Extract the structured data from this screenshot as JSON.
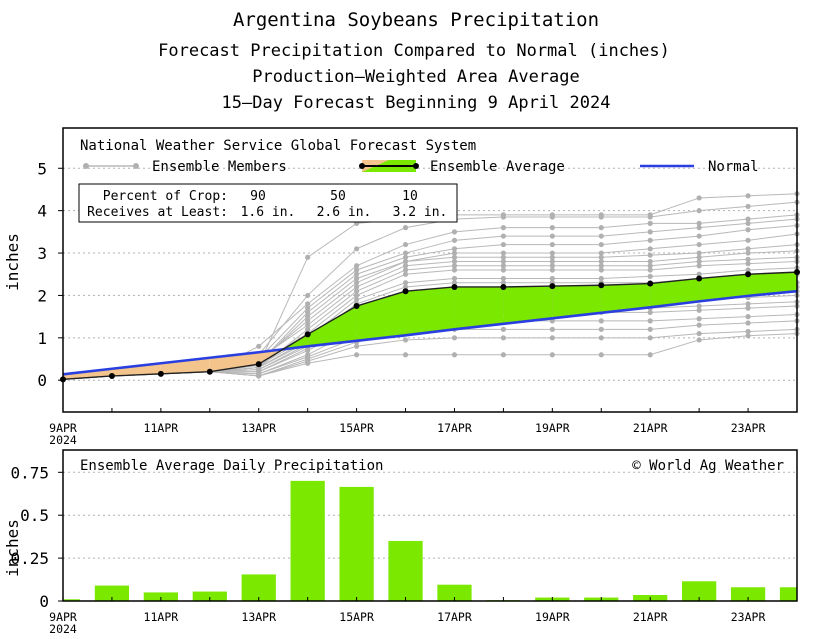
{
  "titles": {
    "line1": "Argentina Soybeans Precipitation",
    "line2": "Forecast Precipitation Compared to Normal (inches)",
    "line3": "Production—Weighted Area Average",
    "line4": "15—Day Forecast Beginning 9 April 2024"
  },
  "top_legend": {
    "model": "National Weather Service Global Forecast System",
    "members": "Ensemble Members",
    "average": "Ensemble Average",
    "normal": "Normal"
  },
  "crop_box": {
    "row1_label": "Percent of Crop:",
    "row1_values": [
      "90",
      "50",
      "10"
    ],
    "row2_label": "Receives at Least:",
    "row2_values": [
      "1.6 in.",
      "2.6 in.",
      "3.2 in."
    ]
  },
  "bottom_legend": {
    "title": "Ensemble Average Daily Precipitation",
    "copyright": "© World Ag Weather"
  },
  "colors": {
    "normal": "#2a3fe0",
    "above_fill": "#7be800",
    "below_fill": "#f3c48c",
    "members": "#b8b8b8",
    "bars": "#7be800"
  },
  "chart_data": [
    {
      "type": "line",
      "title": "Forecast Precipitation Compared to Normal (inches)",
      "ylabel": "inches",
      "xlabel": "",
      "ylim": [
        -0.75,
        5.95
      ],
      "yticks": [
        "0",
        "1",
        "2",
        "3",
        "4",
        "5"
      ],
      "xtick_labels": [
        "9APR",
        "11APR",
        "13APR",
        "15APR",
        "17APR",
        "19APR",
        "21APR",
        "23APR"
      ],
      "x_year_label": "2024",
      "days": [
        0,
        1,
        2,
        3,
        4,
        5,
        6,
        7,
        8,
        9,
        10,
        11,
        12,
        13,
        14,
        15
      ],
      "series": [
        {
          "name": "Ensemble Average",
          "values": [
            0.02,
            0.1,
            0.15,
            0.2,
            0.38,
            1.08,
            1.75,
            2.1,
            2.2,
            2.2,
            2.22,
            2.24,
            2.28,
            2.4,
            2.5,
            2.55
          ]
        },
        {
          "name": "Normal",
          "values": [
            0.14,
            0.27,
            0.4,
            0.53,
            0.66,
            0.8,
            0.93,
            1.06,
            1.2,
            1.33,
            1.46,
            1.59,
            1.72,
            1.86,
            1.99,
            2.1
          ]
        }
      ],
      "ensemble_members": [
        [
          0.02,
          0.1,
          0.15,
          0.2,
          0.35,
          2.9,
          3.7,
          3.8,
          3.9,
          3.9,
          3.9,
          3.9,
          3.9,
          4.3,
          4.35,
          4.4
        ],
        [
          0.02,
          0.1,
          0.15,
          0.2,
          0.6,
          2.0,
          3.1,
          3.6,
          3.8,
          3.85,
          3.85,
          3.85,
          3.85,
          4.0,
          4.1,
          4.2
        ],
        [
          0.02,
          0.1,
          0.15,
          0.2,
          0.8,
          1.8,
          2.7,
          3.2,
          3.5,
          3.6,
          3.6,
          3.6,
          3.7,
          3.7,
          3.8,
          3.9
        ],
        [
          0.02,
          0.1,
          0.15,
          0.2,
          0.5,
          1.7,
          2.6,
          3.0,
          3.3,
          3.4,
          3.4,
          3.4,
          3.5,
          3.6,
          3.7,
          3.8
        ],
        [
          0.02,
          0.1,
          0.15,
          0.2,
          0.4,
          1.6,
          2.5,
          2.9,
          3.1,
          3.2,
          3.2,
          3.2,
          3.3,
          3.4,
          3.55,
          3.65
        ],
        [
          0.02,
          0.1,
          0.15,
          0.2,
          0.4,
          1.5,
          2.4,
          2.8,
          3.0,
          3.0,
          3.0,
          3.0,
          3.1,
          3.2,
          3.3,
          3.45
        ],
        [
          0.02,
          0.1,
          0.15,
          0.2,
          0.45,
          1.4,
          2.3,
          2.8,
          2.9,
          2.9,
          2.9,
          2.9,
          2.95,
          3.0,
          3.1,
          3.2
        ],
        [
          0.02,
          0.1,
          0.15,
          0.2,
          0.5,
          1.3,
          2.2,
          2.7,
          2.8,
          2.8,
          2.8,
          2.8,
          2.8,
          2.9,
          3.0,
          3.05
        ],
        [
          0.02,
          0.1,
          0.15,
          0.2,
          0.3,
          1.2,
          2.1,
          2.6,
          2.7,
          2.7,
          2.7,
          2.7,
          2.7,
          2.8,
          2.85,
          2.9
        ],
        [
          0.02,
          0.1,
          0.15,
          0.2,
          0.4,
          1.1,
          2.0,
          2.5,
          2.6,
          2.6,
          2.6,
          2.6,
          2.6,
          2.7,
          2.75,
          2.8
        ],
        [
          0.02,
          0.1,
          0.15,
          0.2,
          0.35,
          1.0,
          1.9,
          2.3,
          2.4,
          2.4,
          2.4,
          2.4,
          2.45,
          2.5,
          2.6,
          2.65
        ],
        [
          0.02,
          0.1,
          0.15,
          0.2,
          0.3,
          0.95,
          1.8,
          2.2,
          2.3,
          2.3,
          2.3,
          2.3,
          2.3,
          2.4,
          2.45,
          2.5
        ],
        [
          0.02,
          0.1,
          0.15,
          0.2,
          0.3,
          0.9,
          1.7,
          2.0,
          2.1,
          2.1,
          2.1,
          2.1,
          2.15,
          2.2,
          2.25,
          2.3
        ],
        [
          0.02,
          0.1,
          0.15,
          0.2,
          0.25,
          0.85,
          1.6,
          1.9,
          2.0,
          2.0,
          2.0,
          2.0,
          2.0,
          2.1,
          2.15,
          2.2
        ],
        [
          0.02,
          0.1,
          0.15,
          0.2,
          0.25,
          0.8,
          1.5,
          1.8,
          1.9,
          1.9,
          1.9,
          1.9,
          1.9,
          2.0,
          2.05,
          2.1
        ],
        [
          0.02,
          0.1,
          0.15,
          0.2,
          0.2,
          0.75,
          1.4,
          1.7,
          1.8,
          1.8,
          1.8,
          1.8,
          1.8,
          1.9,
          1.95,
          2.0
        ],
        [
          0.02,
          0.1,
          0.15,
          0.2,
          0.2,
          0.7,
          1.3,
          1.6,
          1.7,
          1.7,
          1.7,
          1.7,
          1.7,
          1.75,
          1.8,
          1.85
        ],
        [
          0.02,
          0.1,
          0.15,
          0.2,
          0.15,
          0.6,
          1.2,
          1.5,
          1.6,
          1.6,
          1.6,
          1.6,
          1.6,
          1.65,
          1.7,
          1.75
        ],
        [
          0.02,
          0.1,
          0.15,
          0.2,
          0.15,
          0.55,
          1.0,
          1.3,
          1.4,
          1.4,
          1.4,
          1.4,
          1.4,
          1.45,
          1.5,
          1.55
        ],
        [
          0.02,
          0.1,
          0.15,
          0.2,
          0.1,
          0.5,
          0.9,
          1.1,
          1.2,
          1.2,
          1.2,
          1.2,
          1.2,
          1.3,
          1.35,
          1.4
        ],
        [
          0.02,
          0.1,
          0.15,
          0.2,
          0.1,
          0.45,
          0.8,
          0.95,
          1.0,
          1.0,
          1.0,
          1.0,
          1.0,
          1.1,
          1.15,
          1.2
        ],
        [
          0.02,
          0.1,
          0.15,
          0.2,
          0.1,
          0.4,
          0.6,
          0.6,
          0.6,
          0.6,
          0.6,
          0.6,
          0.6,
          0.95,
          1.05,
          1.1
        ]
      ]
    },
    {
      "type": "bar",
      "title": "Ensemble Average Daily Precipitation",
      "ylabel": "inches",
      "ylim": [
        0,
        0.88
      ],
      "yticks": [
        "0",
        "0.25",
        "0.5",
        "0.75"
      ],
      "xtick_labels": [
        "9APR",
        "11APR",
        "13APR",
        "15APR",
        "17APR",
        "19APR",
        "21APR",
        "23APR"
      ],
      "x_year_label": "2024",
      "days": [
        0,
        1,
        2,
        3,
        4,
        5,
        6,
        7,
        8,
        9,
        10,
        11,
        12,
        13,
        14,
        15
      ],
      "values": [
        0.01,
        0.09,
        0.05,
        0.055,
        0.155,
        0.7,
        0.665,
        0.35,
        0.095,
        0.005,
        0.02,
        0.02,
        0.035,
        0.115,
        0.08,
        0.08
      ]
    }
  ]
}
